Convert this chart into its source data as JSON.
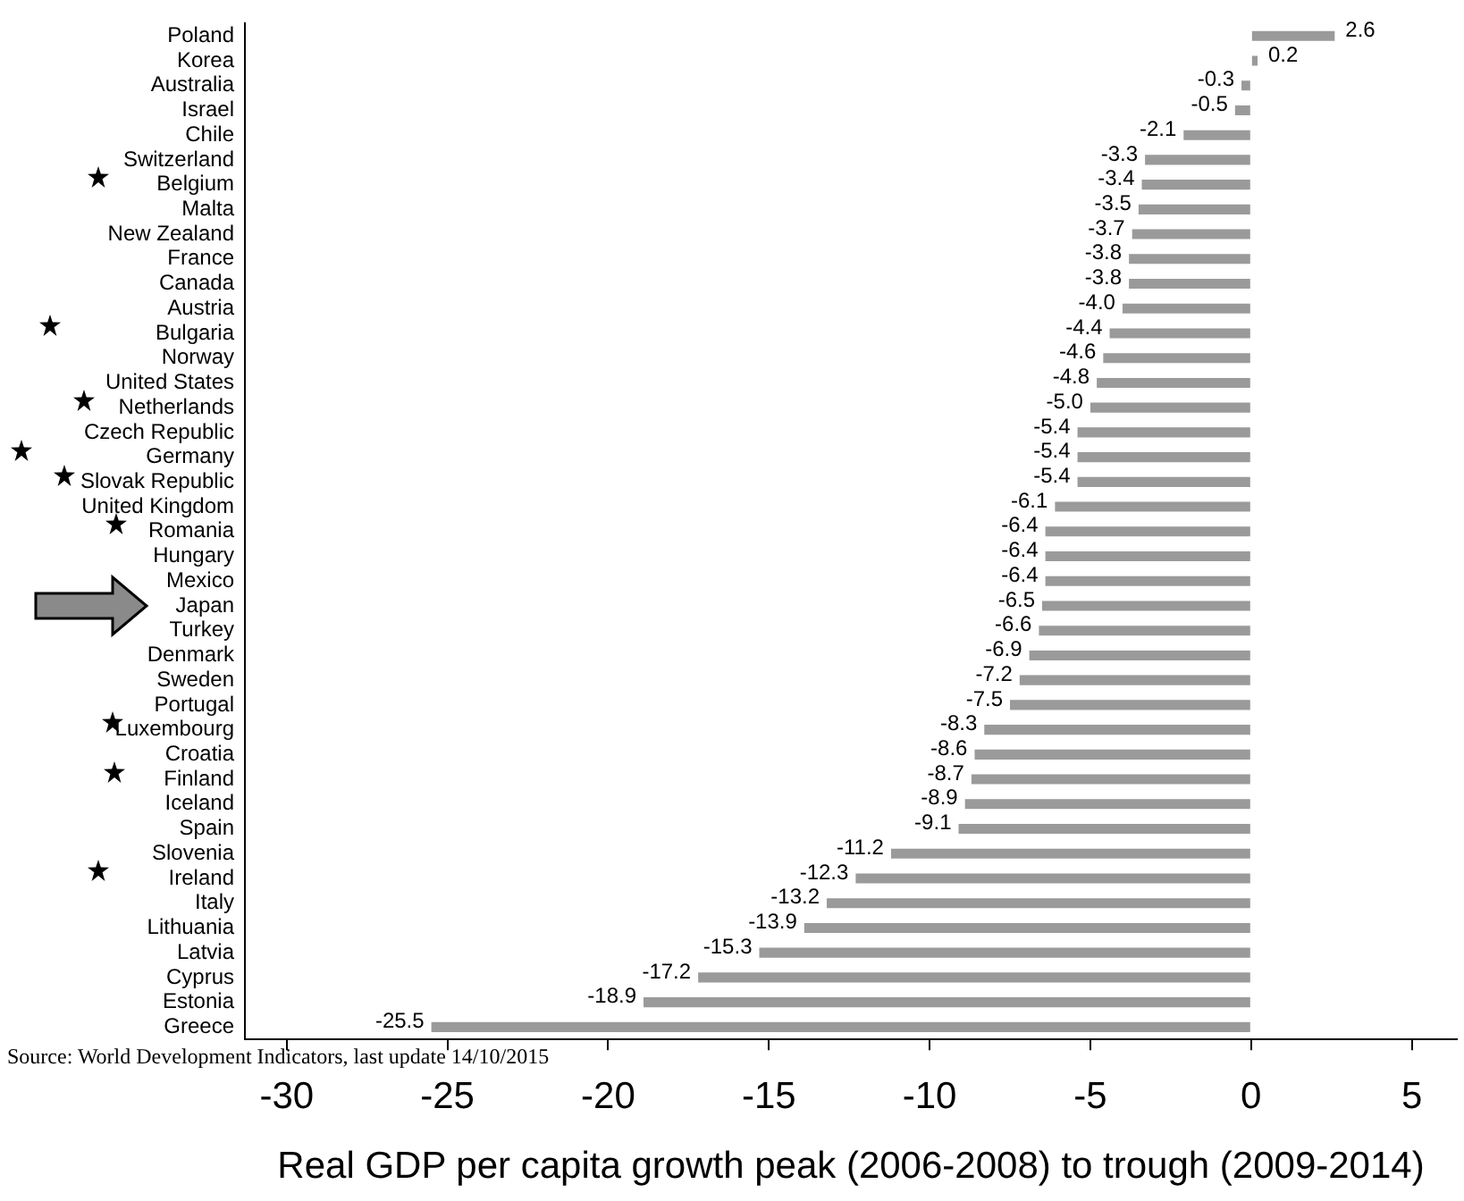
{
  "chart_data": {
    "type": "bar",
    "orientation": "horizontal",
    "xlabel": "Real GDP per capita growth peak (2006-2008) to trough (2009-2014)",
    "categories": [
      "Poland",
      "Korea",
      "Australia",
      "Israel",
      "Chile",
      "Switzerland",
      "Belgium",
      "Malta",
      "New Zealand",
      "France",
      "Canada",
      "Austria",
      "Bulgaria",
      "Norway",
      "United States",
      "Netherlands",
      "Czech Republic",
      "Germany",
      "Slovak Republic",
      "United Kingdom",
      "Romania",
      "Hungary",
      "Mexico",
      "Japan",
      "Turkey",
      "Denmark",
      "Sweden",
      "Portugal",
      "Luxembourg",
      "Croatia",
      "Finland",
      "Iceland",
      "Spain",
      "Slovenia",
      "Ireland",
      "Italy",
      "Lithuania",
      "Latvia",
      "Cyprus",
      "Estonia",
      "Greece"
    ],
    "values": [
      2.6,
      0.2,
      -0.3,
      -0.5,
      -2.1,
      -3.3,
      -3.4,
      -3.5,
      -3.7,
      -3.8,
      -3.8,
      -4.0,
      -4.4,
      -4.6,
      -4.8,
      -5.0,
      -5.4,
      -5.4,
      -5.4,
      -6.1,
      -6.4,
      -6.4,
      -6.4,
      -6.5,
      -6.6,
      -6.9,
      -7.2,
      -7.5,
      -8.3,
      -8.6,
      -8.7,
      -8.9,
      -9.1,
      -11.2,
      -12.3,
      -13.2,
      -13.9,
      -15.3,
      -17.2,
      -18.9,
      -25.5
    ],
    "value_labels": [
      "2.6",
      "0.2",
      "-0.3",
      "-0.5",
      "-2.1",
      "-3.3",
      "-3.4",
      "-3.5",
      "-3.7",
      "-3.8",
      "-3.8",
      "-4.0",
      "-4.4",
      "-4.6",
      "-4.8",
      "-5.0",
      "-5.4",
      "-5.4",
      "-5.4",
      "-6.1",
      "-6.4",
      "-6.4",
      "-6.4",
      "-6.5",
      "-6.6",
      "-6.9",
      "-7.2",
      "-7.5",
      "-8.3",
      "-8.6",
      "-8.7",
      "-8.9",
      "-9.1",
      "-11.2",
      "-12.3",
      "-13.2",
      "-13.9",
      "-15.3",
      "-17.2",
      "-18.9",
      "-25.5"
    ],
    "color": "#9a9a9a",
    "grid": false,
    "legend": false,
    "xlim": [
      -31.3,
      6.4
    ],
    "xticks": [
      -30,
      -25,
      -20,
      -15,
      -10,
      -5,
      0,
      5
    ],
    "annotations": [
      "Source: World Development Indicators, last update 14/10/2015"
    ]
  }
}
